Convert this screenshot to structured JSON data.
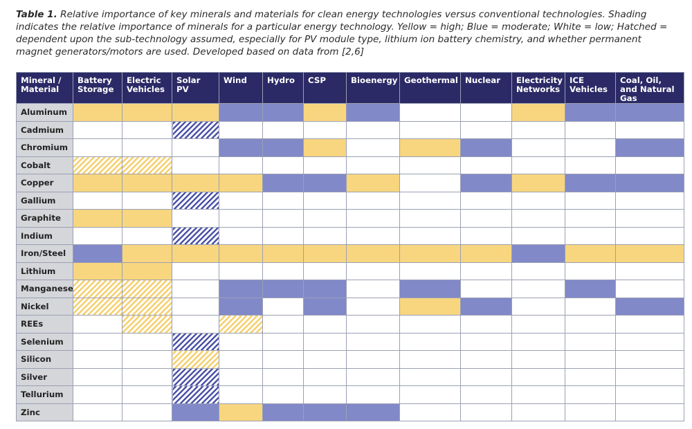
{
  "caption": {
    "lead": "Table 1.",
    "text": " Relative importance of key minerals and materials for clean energy technologies versus conventional technologies. Shading indicates the relative importance of minerals for a particular energy technology. Yellow = high; Blue = moderate; White = low; Hatched = dependent upon the sub-technology assumed, especially for PV module type, lithium ion battery chemistry, and whether permanent magnet generators/motors are used. Developed based on data from [2,6]"
  },
  "columns": [
    "Mineral / Material",
    "Battery Storage",
    "Electric Vehicles",
    "Solar PV",
    "Wind",
    "Hydro",
    "CSP",
    "Bioenergy",
    "Geothermal",
    "Nuclear",
    "Electricity Networks",
    "ICE Vehicles",
    "Coal, Oil, and Natural Gas"
  ],
  "colors": {
    "high": "#f8d67f",
    "moderate": "#8289c9",
    "low": "#ffffff",
    "header": "#2b2a66",
    "rowhead": "#d5d6da"
  },
  "rows": [
    {
      "name": "Aluminum",
      "cells": [
        "high",
        "high",
        "high",
        "mod",
        "mod",
        "high",
        "mod",
        "low",
        "low",
        "high",
        "mod",
        "mod"
      ]
    },
    {
      "name": "Cadmium",
      "cells": [
        "low",
        "low",
        "hatch-mod",
        "low",
        "low",
        "low",
        "low",
        "low",
        "low",
        "low",
        "low",
        "low"
      ]
    },
    {
      "name": "Chromium",
      "cells": [
        "low",
        "low",
        "low",
        "mod",
        "mod",
        "high",
        "low",
        "high",
        "mod",
        "low",
        "low",
        "mod"
      ]
    },
    {
      "name": "Cobalt",
      "cells": [
        "hatch-high",
        "hatch-high",
        "low",
        "low",
        "low",
        "low",
        "low",
        "low",
        "low",
        "low",
        "low",
        "low"
      ]
    },
    {
      "name": "Copper",
      "cells": [
        "high",
        "high",
        "high",
        "high",
        "mod",
        "mod",
        "high",
        "low",
        "mod",
        "high",
        "mod",
        "mod"
      ]
    },
    {
      "name": "Gallium",
      "cells": [
        "low",
        "low",
        "hatch-mod",
        "low",
        "low",
        "low",
        "low",
        "low",
        "low",
        "low",
        "low",
        "low"
      ]
    },
    {
      "name": "Graphite",
      "cells": [
        "high",
        "high",
        "low",
        "low",
        "low",
        "low",
        "low",
        "low",
        "low",
        "low",
        "low",
        "low"
      ]
    },
    {
      "name": "Indium",
      "cells": [
        "low",
        "low",
        "hatch-mod",
        "low",
        "low",
        "low",
        "low",
        "low",
        "low",
        "low",
        "low",
        "low"
      ]
    },
    {
      "name": "Iron/Steel",
      "cells": [
        "mod",
        "high",
        "high",
        "high",
        "high",
        "high",
        "high",
        "high",
        "high",
        "mod",
        "high",
        "high"
      ]
    },
    {
      "name": "Lithium",
      "cells": [
        "high",
        "high",
        "low",
        "low",
        "low",
        "low",
        "low",
        "low",
        "low",
        "low",
        "low",
        "low"
      ]
    },
    {
      "name": "Manganese",
      "cells": [
        "hatch-high",
        "hatch-high",
        "low",
        "mod",
        "mod",
        "mod",
        "low",
        "mod",
        "low",
        "low",
        "mod",
        "low"
      ]
    },
    {
      "name": "Nickel",
      "cells": [
        "hatch-high",
        "hatch-high",
        "low",
        "mod",
        "low",
        "mod",
        "low",
        "high",
        "mod",
        "low",
        "low",
        "mod"
      ]
    },
    {
      "name": "REEs",
      "cells": [
        "low",
        "hatch-high",
        "low",
        "hatch-high",
        "low",
        "low",
        "low",
        "low",
        "low",
        "low",
        "low",
        "low"
      ]
    },
    {
      "name": "Selenium",
      "cells": [
        "low",
        "low",
        "hatch-mod",
        "low",
        "low",
        "low",
        "low",
        "low",
        "low",
        "low",
        "low",
        "low"
      ]
    },
    {
      "name": "Silicon",
      "cells": [
        "low",
        "low",
        "hatch-high",
        "low",
        "low",
        "low",
        "low",
        "low",
        "low",
        "low",
        "low",
        "low"
      ]
    },
    {
      "name": "Silver",
      "cells": [
        "low",
        "low",
        "hatch-mod",
        "low",
        "low",
        "low",
        "low",
        "low",
        "low",
        "low",
        "low",
        "low"
      ]
    },
    {
      "name": "Tellurium",
      "cells": [
        "low",
        "low",
        "hatch-mod",
        "low",
        "low",
        "low",
        "low",
        "low",
        "low",
        "low",
        "low",
        "low"
      ]
    },
    {
      "name": "Zinc",
      "cells": [
        "low",
        "low",
        "mod",
        "high",
        "mod",
        "mod",
        "mod",
        "low",
        "low",
        "low",
        "low",
        "low"
      ]
    }
  ]
}
